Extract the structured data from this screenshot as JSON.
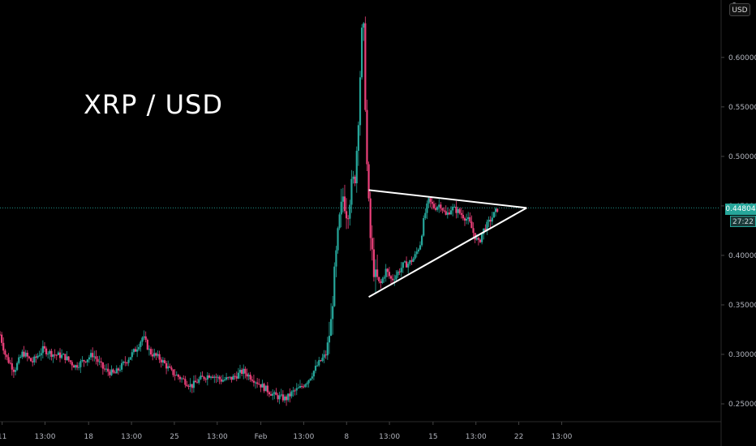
{
  "chart_data": {
    "type": "candlestick",
    "title": "XRP / USD",
    "currency": "USD",
    "last_price": "0.44804",
    "countdown": "27:22",
    "top_price_label": "0",
    "y_ticks": [
      "0.60000",
      "0.55000",
      "0.50000",
      "0.45000",
      "0.40000",
      "0.35000",
      "0.30000",
      "0.25000"
    ],
    "y_tick_values": [
      0.6,
      0.55,
      0.5,
      0.45,
      0.4,
      0.35,
      0.3,
      0.25
    ],
    "x_ticks": [
      "11",
      "13:00",
      "18",
      "13:00",
      "25",
      "13:00",
      "Feb",
      "13:00",
      "8",
      "13:00",
      "15",
      "13:00",
      "22",
      "13:00"
    ],
    "ylim": [
      0.232,
      0.658
    ],
    "x_range_hours": [
      0,
      1008
    ],
    "trend_lines": [
      {
        "name": "upper-resistance",
        "from": {
          "t": 516,
          "price": 0.466
        },
        "to": {
          "t": 737,
          "price": 0.448
        }
      },
      {
        "name": "lower-support",
        "from": {
          "t": 516,
          "price": 0.358
        },
        "to": {
          "t": 737,
          "price": 0.448
        }
      }
    ],
    "approx_price_path": [
      [
        0,
        0.32
      ],
      [
        8,
        0.298
      ],
      [
        20,
        0.284
      ],
      [
        32,
        0.302
      ],
      [
        45,
        0.292
      ],
      [
        60,
        0.305
      ],
      [
        75,
        0.3
      ],
      [
        90,
        0.298
      ],
      [
        105,
        0.288
      ],
      [
        118,
        0.294
      ],
      [
        130,
        0.3
      ],
      [
        145,
        0.285
      ],
      [
        160,
        0.28
      ],
      [
        175,
        0.292
      ],
      [
        190,
        0.305
      ],
      [
        200,
        0.318
      ],
      [
        210,
        0.302
      ],
      [
        225,
        0.295
      ],
      [
        240,
        0.282
      ],
      [
        255,
        0.275
      ],
      [
        268,
        0.268
      ],
      [
        280,
        0.275
      ],
      [
        295,
        0.28
      ],
      [
        310,
        0.274
      ],
      [
        325,
        0.276
      ],
      [
        340,
        0.283
      ],
      [
        355,
        0.275
      ],
      [
        370,
        0.266
      ],
      [
        385,
        0.258
      ],
      [
        400,
        0.255
      ],
      [
        410,
        0.262
      ],
      [
        420,
        0.266
      ],
      [
        432,
        0.275
      ],
      [
        445,
        0.29
      ],
      [
        456,
        0.3
      ],
      [
        463,
        0.33
      ],
      [
        468,
        0.38
      ],
      [
        474,
        0.43
      ],
      [
        480,
        0.46
      ],
      [
        486,
        0.44
      ],
      [
        492,
        0.47
      ],
      [
        497,
        0.48
      ],
      [
        501,
        0.53
      ],
      [
        505,
        0.6
      ],
      [
        508,
        0.65
      ],
      [
        511,
        0.56
      ],
      [
        514,
        0.48
      ],
      [
        518,
        0.42
      ],
      [
        524,
        0.38
      ],
      [
        532,
        0.37
      ],
      [
        540,
        0.385
      ],
      [
        548,
        0.375
      ],
      [
        556,
        0.382
      ],
      [
        564,
        0.39
      ],
      [
        572,
        0.392
      ],
      [
        580,
        0.398
      ],
      [
        588,
        0.412
      ],
      [
        594,
        0.44
      ],
      [
        600,
        0.455
      ],
      [
        608,
        0.448
      ],
      [
        616,
        0.452
      ],
      [
        624,
        0.44
      ],
      [
        632,
        0.448
      ],
      [
        640,
        0.445
      ],
      [
        648,
        0.44
      ],
      [
        656,
        0.435
      ],
      [
        664,
        0.42
      ],
      [
        670,
        0.412
      ],
      [
        676,
        0.425
      ],
      [
        683,
        0.432
      ],
      [
        690,
        0.44
      ],
      [
        697,
        0.448
      ]
    ]
  },
  "colors": {
    "up": "#26a69a",
    "down": "#ec407a",
    "trend_line": "#ffffff",
    "grid": "#1a1a1a",
    "axis_text": "#b2b5be",
    "price_line": "#26a69a"
  }
}
